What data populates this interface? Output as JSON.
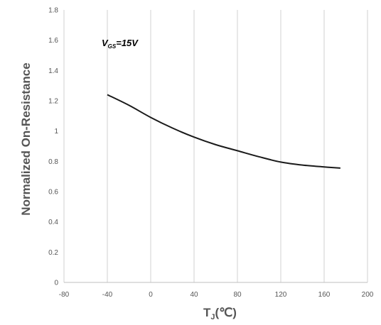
{
  "chart_data": {
    "type": "line",
    "title": "",
    "xlabel": "TJ(℃)",
    "xlabel_main": "T",
    "xlabel_sub": "J",
    "xlabel_unit": "(℃)",
    "ylabel": "Normalized On-Resistance",
    "xlim": [
      -80,
      200
    ],
    "ylim": [
      0,
      1.8
    ],
    "x_ticks": [
      -80,
      -40,
      0,
      40,
      80,
      120,
      160,
      200
    ],
    "x_tick_labels": [
      "-80",
      "-40",
      "0",
      "40",
      "80",
      "120",
      "160",
      "200"
    ],
    "y_ticks": [
      0,
      0.2,
      0.4,
      0.6,
      0.8,
      1,
      1.2,
      1.4,
      1.6,
      1.8
    ],
    "y_tick_labels": [
      "0",
      "0.2",
      "0.4",
      "0.6",
      "0.8",
      "1",
      "1.2",
      "1.4",
      "1.6",
      "1.8"
    ],
    "grid": "vertical",
    "annotation": {
      "main": "V",
      "sub": "GS",
      "text": "=15V",
      "x": -40,
      "y": 1.58
    },
    "series": [
      {
        "color": "#1a1a1a",
        "x": [
          -40,
          -20,
          0,
          20,
          40,
          60,
          80,
          100,
          120,
          140,
          160,
          175
        ],
        "y": [
          1.24,
          1.17,
          1.09,
          1.02,
          0.96,
          0.91,
          0.87,
          0.83,
          0.795,
          0.775,
          0.763,
          0.755
        ]
      }
    ]
  }
}
